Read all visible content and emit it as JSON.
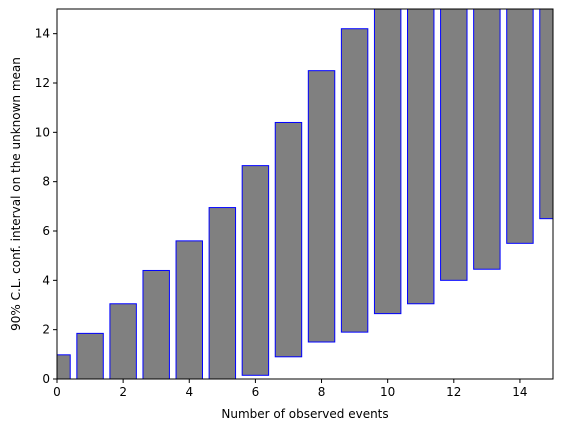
{
  "chart_data": {
    "type": "bar",
    "subtype": "floating-interval",
    "title": "",
    "xlabel": "Number of observed events",
    "ylabel": "90% C.L. conf. interval on the unknown mean",
    "xlim": [
      0,
      15
    ],
    "ylim": [
      0,
      15
    ],
    "xticks": [
      0,
      2,
      4,
      6,
      8,
      10,
      12,
      14
    ],
    "yticks": [
      0,
      2,
      4,
      6,
      8,
      10,
      12,
      14
    ],
    "grid": false,
    "bar_fill_color": "#808080",
    "bar_edge_color": "#0000ff",
    "bar_width": 0.8,
    "x": [
      0,
      1,
      2,
      3,
      4,
      5,
      6,
      7,
      8,
      9,
      10,
      11,
      12,
      13,
      14,
      15
    ],
    "lower": [
      0.0,
      0.0,
      0.0,
      0.0,
      0.0,
      0.0,
      0.15,
      0.9,
      1.5,
      1.9,
      2.65,
      3.05,
      4.0,
      4.45,
      5.5,
      6.5
    ],
    "upper": [
      0.98,
      1.85,
      3.05,
      4.4,
      5.6,
      6.95,
      8.65,
      10.4,
      12.5,
      14.2,
      15.0,
      15.0,
      15.0,
      15.0,
      15.0,
      15.0
    ]
  }
}
